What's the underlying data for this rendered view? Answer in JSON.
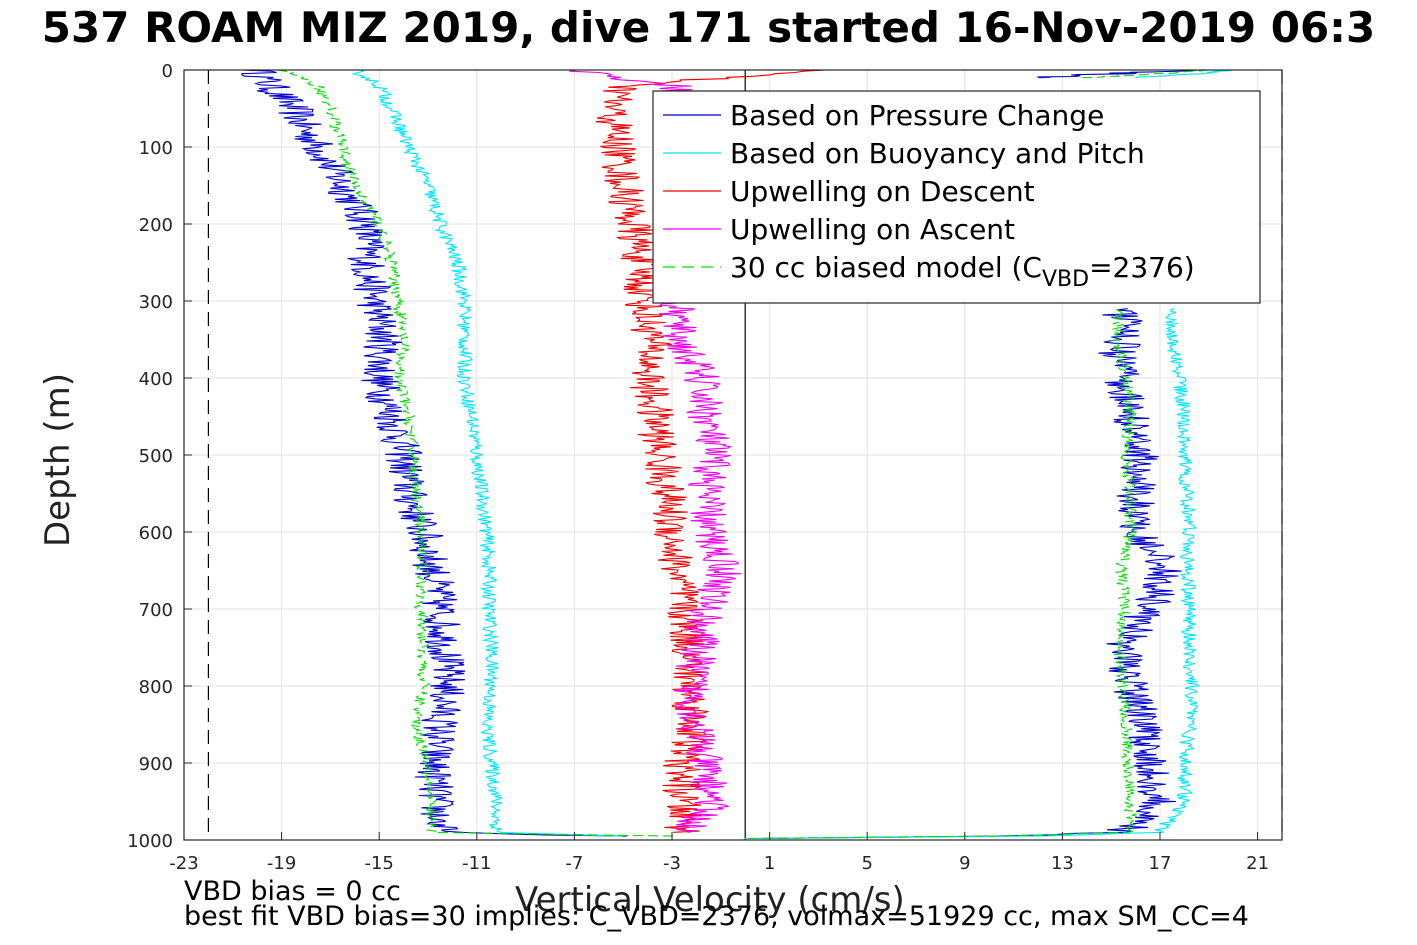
{
  "title": "537 ROAM MIZ 2019, dive 171 started 16-Nov-2019 06:3",
  "notes": {
    "bias": "VBD bias = 0 cc",
    "fit": "best fit VBD bias=30 implies: C_VBD=2376, volmax=51929 cc, max SM_CC=4"
  },
  "chart_data": {
    "type": "line",
    "xlabel": "Vertical Velocity (cm/s)",
    "ylabel": "Depth (m)",
    "xlim": [
      -23,
      22
    ],
    "ylim": [
      0,
      1000
    ],
    "y_reversed": true,
    "grid": true,
    "x_ticks": [
      -23,
      -19,
      -15,
      -11,
      -7,
      -3,
      1,
      5,
      9,
      13,
      17,
      21
    ],
    "y_ticks": [
      0,
      100,
      200,
      300,
      400,
      500,
      600,
      700,
      800,
      900,
      1000
    ],
    "legend_placement": "top-right",
    "reference_lines": [
      {
        "x": -22,
        "style": "dashed",
        "color": "#000000"
      },
      {
        "x": 0,
        "style": "solid",
        "color": "#000000"
      },
      {
        "x": 22,
        "style": "dashed",
        "color": "#000000"
      }
    ],
    "series": [
      {
        "name": "Based on Pressure Change",
        "color": "#0000cc",
        "segments": [
          {
            "depth": [
              0,
              20,
              50,
              80,
              100,
              150,
              200,
              250,
              300,
              350,
              400,
              450,
              500,
              550,
              600,
              650,
              700,
              750,
              800,
              850,
              900,
              950,
              990,
              995
            ],
            "velocity": [
              -20,
              -19.5,
              -18.5,
              -18,
              -17.5,
              -16.5,
              -15.5,
              -15.5,
              -15.2,
              -14.8,
              -15,
              -14.5,
              -14,
              -13.8,
              -13.2,
              -12.8,
              -12.5,
              -12.3,
              -12.2,
              -12.5,
              -12.8,
              -12.7,
              -12.5,
              -5
            ]
          },
          {
            "depth": [
              998,
              995,
              990,
              950,
              900,
              850,
              800,
              750,
              700,
              650,
              600,
              550,
              500,
              450,
              400,
              370,
              350,
              320,
              310
            ],
            "velocity": [
              0,
              10,
              15.5,
              17,
              16.5,
              16.5,
              15.8,
              15.5,
              16.5,
              17.3,
              16,
              16,
              16.2,
              15.8,
              15.5,
              15.2,
              15.5,
              15.5,
              15
            ]
          },
          {
            "depth": [
              10,
              5,
              0
            ],
            "velocity": [
              12,
              15,
              18
            ]
          }
        ]
      },
      {
        "name": "Based on Buoyancy and Pitch",
        "color": "#00e5ff",
        "segments": [
          {
            "depth": [
              0,
              20,
              50,
              100,
              150,
              200,
              250,
              300,
              350,
              400,
              450,
              500,
              550,
              600,
              650,
              700,
              750,
              800,
              850,
              900,
              950,
              990,
              995
            ],
            "velocity": [
              -16,
              -15,
              -14.5,
              -13.8,
              -13,
              -12.5,
              -11.8,
              -11.5,
              -11.5,
              -11.5,
              -11.2,
              -11,
              -10.8,
              -10.6,
              -10.5,
              -10.5,
              -10.4,
              -10.4,
              -10.6,
              -10.4,
              -10.2,
              -10.2,
              -5
            ]
          },
          {
            "depth": [
              998,
              995,
              990,
              950,
              900,
              850,
              800,
              750,
              700,
              650,
              600,
              550,
              500,
              450,
              400,
              350,
              320,
              310
            ],
            "velocity": [
              0,
              12,
              17,
              18,
              18,
              18.2,
              18.3,
              18.2,
              18.2,
              18.1,
              18.2,
              18.1,
              18,
              18,
              17.8,
              17.5,
              17.5,
              17.3
            ]
          },
          {
            "depth": [
              10,
              5,
              0
            ],
            "velocity": [
              16,
              18.5,
              20
            ]
          }
        ]
      },
      {
        "name": "Upwelling on Descent",
        "color": "#ee0000",
        "segments": [
          {
            "depth": [
              0,
              20,
              50,
              100,
              150,
              200,
              250,
              300,
              350,
              400,
              450,
              500,
              550,
              600,
              650,
              700,
              750,
              800,
              850,
              900,
              950,
              990
            ],
            "velocity": [
              3,
              -5,
              -5.5,
              -5.2,
              -5,
              -4.6,
              -4.3,
              -4.2,
              -3.8,
              -4,
              -3.7,
              -3.5,
              -3.2,
              -3,
              -2.8,
              -2.5,
              -2.3,
              -2.3,
              -2.1,
              -2.6,
              -2.6,
              -2.5
            ]
          }
        ]
      },
      {
        "name": "Upwelling on Ascent",
        "color": "#ee00ee",
        "segments": [
          {
            "depth": [
              0,
              20,
              50,
              100,
              150,
              200,
              250,
              300,
              350,
              400,
              450,
              500,
              550,
              600,
              650,
              700,
              750,
              800,
              850,
              900,
              950,
              990
            ],
            "velocity": [
              -7,
              -3,
              -2.5,
              -2.3,
              -2.3,
              -2.5,
              -2.8,
              -2.9,
              -2.7,
              -1.8,
              -1.6,
              -1.3,
              -1.6,
              -1.5,
              -0.8,
              -1.6,
              -1.9,
              -2.2,
              -2,
              -1.7,
              -1.3,
              -2.5
            ]
          }
        ]
      },
      {
        "name": "30 cc biased model (C_VBD=2376)",
        "color": "#00dd00",
        "dashed": true,
        "segments": [
          {
            "depth": [
              0,
              20,
              50,
              100,
              150,
              200,
              250,
              300,
              350,
              400,
              450,
              500,
              550,
              600,
              650,
              700,
              750,
              800,
              850,
              900,
              950,
              990,
              995
            ],
            "velocity": [
              -19,
              -17.5,
              -17,
              -16.5,
              -16,
              -15,
              -14.5,
              -14.2,
              -14,
              -14.2,
              -13.8,
              -13.6,
              -13.5,
              -13.3,
              -13.2,
              -13.3,
              -13.2,
              -13.2,
              -13.5,
              -13,
              -12.9,
              -12.9,
              -3
            ]
          },
          {
            "depth": [
              998,
              995,
              990,
              950,
              900,
              850,
              800,
              750,
              700,
              650,
              600,
              550,
              500,
              450,
              400,
              350,
              320,
              310
            ],
            "velocity": [
              0,
              10,
              15.8,
              15.8,
              15.7,
              15.6,
              15.5,
              15.3,
              15.6,
              15.4,
              15.8,
              15.8,
              15.6,
              15.8,
              15.6,
              15.2,
              15.3,
              15.3
            ]
          },
          {
            "depth": [
              10,
              5,
              0
            ],
            "velocity": [
              14,
              17,
              19
            ]
          }
        ]
      }
    ],
    "legend": [
      {
        "label": "Based on Pressure Change",
        "color": "#0000cc",
        "dashed": false
      },
      {
        "label": "Based on Buoyancy and Pitch",
        "color": "#00e5ff",
        "dashed": false
      },
      {
        "label": "Upwelling on Descent",
        "color": "#ee0000",
        "dashed": false
      },
      {
        "label": "Upwelling on Ascent",
        "color": "#ee00ee",
        "dashed": false
      },
      {
        "label": "30 cc biased model (C",
        "sub": "VBD",
        "suffix": "=2376)",
        "color": "#00dd00",
        "dashed": true
      }
    ]
  }
}
